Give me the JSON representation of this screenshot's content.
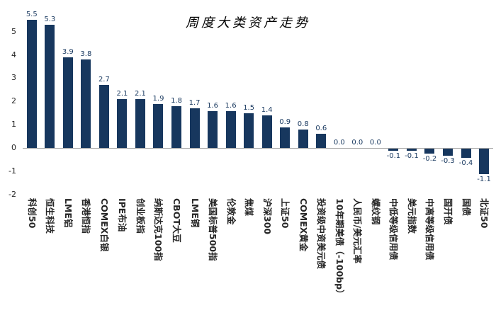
{
  "chart_data": {
    "type": "bar",
    "title": "周度大类资产走势",
    "categories": [
      "科创50",
      "恒生科技",
      "LME铝",
      "香港恒指",
      "COMEX白银",
      "IPE布油",
      "创业板指",
      "纳斯达克100指",
      "CBOT大豆",
      "LME铜",
      "美国标普500指",
      "伦敦金",
      "焦煤",
      "沪深300",
      "上证50",
      "COMEX黄金",
      "投资级中资美元债",
      "10年期美债（-100bp）",
      "人民币/美元汇率",
      "螺纹钢",
      "中低等级信用债",
      "美元指数",
      "中高等级信用债",
      "国开债",
      "国债",
      "北证50"
    ],
    "values": [
      5.5,
      5.3,
      3.9,
      3.8,
      2.7,
      2.1,
      2.1,
      1.9,
      1.8,
      1.7,
      1.6,
      1.6,
      1.5,
      1.4,
      0.9,
      0.8,
      0.6,
      0.0,
      0.0,
      0.0,
      -0.1,
      -0.1,
      -0.2,
      -0.3,
      -0.4,
      -1.1
    ],
    "xlabel": "",
    "ylabel": "",
    "ylim": [
      -2,
      5.9
    ],
    "yticks": [
      -2,
      -1,
      0,
      1,
      2,
      3,
      4,
      5
    ],
    "grid": false,
    "legend": false,
    "value_labels_shown": true,
    "colors": {
      "bar": "#17375E",
      "value_label": "#17375E",
      "axis_label": "#262626",
      "zero_line": "#A6A6A6",
      "title": "#000000"
    }
  }
}
